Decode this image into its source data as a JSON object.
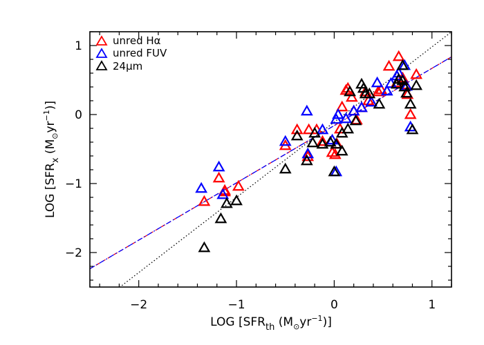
{
  "chart_data": {
    "type": "scatter",
    "xlabel": {
      "pre": "LOG [SFR",
      "sub": "th",
      "post": " (M",
      "sun": "⊙",
      "unit": "yr",
      "sup": "−1",
      "close": ")]"
    },
    "ylabel": {
      "pre": "LOG [SFR",
      "sub": "x",
      "post": " (M",
      "sun": "⊙",
      "unit": "yr",
      "sup": "−1",
      "close": ")]"
    },
    "xlim": [
      -2.5,
      1.2
    ],
    "ylim": [
      -2.5,
      1.2
    ],
    "xticks": [
      -2,
      -1,
      0,
      1
    ],
    "yticks": [
      -2,
      -1,
      0,
      1
    ],
    "xminor_step": 0.2,
    "yminor_step": 0.2,
    "grid": false,
    "legend_position": "top-left",
    "series": [
      {
        "name": "unred Hα",
        "marker": "triangle-open",
        "color": "#ff0000",
        "points": [
          [
            -1.33,
            -1.26
          ],
          [
            -1.18,
            -0.92
          ],
          [
            -1.12,
            -1.1
          ],
          [
            -1.12,
            -1.12
          ],
          [
            -0.98,
            -1.04
          ],
          [
            -0.5,
            -0.45
          ],
          [
            -0.38,
            -0.22
          ],
          [
            -0.26,
            -0.22
          ],
          [
            -0.27,
            -0.61
          ],
          [
            -0.18,
            -0.22
          ],
          [
            -0.12,
            -0.39
          ],
          [
            -0.02,
            -0.55
          ],
          [
            0.01,
            -0.58
          ],
          [
            0.03,
            -0.43
          ],
          [
            0.06,
            -0.21
          ],
          [
            0.08,
            0.11
          ],
          [
            0.12,
            0.35
          ],
          [
            0.14,
            0.38
          ],
          [
            0.18,
            0.25
          ],
          [
            0.2,
            0.05
          ],
          [
            0.23,
            -0.08
          ],
          [
            0.28,
            0.1
          ],
          [
            0.32,
            0.33
          ],
          [
            0.35,
            0.2
          ],
          [
            0.45,
            0.33
          ],
          [
            0.48,
            0.36
          ],
          [
            0.56,
            0.7
          ],
          [
            0.64,
            0.46
          ],
          [
            0.66,
            0.84
          ],
          [
            0.7,
            0.53
          ],
          [
            0.73,
            0.43
          ],
          [
            0.75,
            0.29
          ],
          [
            0.78,
            0.0
          ],
          [
            0.84,
            0.58
          ]
        ]
      },
      {
        "name": "unred FUV",
        "marker": "triangle-open",
        "color": "#0000ff",
        "points": [
          [
            -1.36,
            -1.07
          ],
          [
            -1.18,
            -0.76
          ],
          [
            -1.14,
            -1.16
          ],
          [
            -0.5,
            -0.39
          ],
          [
            -0.28,
            0.05
          ],
          [
            -0.27,
            -0.57
          ],
          [
            -0.12,
            -0.22
          ],
          [
            -0.02,
            -0.37
          ],
          [
            0.02,
            -0.07
          ],
          [
            0.02,
            -0.83
          ],
          [
            0.04,
            0.0
          ],
          [
            0.12,
            -0.06
          ],
          [
            0.2,
            0.05
          ],
          [
            0.28,
            0.1
          ],
          [
            0.38,
            0.18
          ],
          [
            0.44,
            0.46
          ],
          [
            0.54,
            0.34
          ],
          [
            0.58,
            0.45
          ],
          [
            0.64,
            0.56
          ],
          [
            0.66,
            0.6
          ],
          [
            0.72,
            0.71
          ],
          [
            0.74,
            0.41
          ],
          [
            0.78,
            -0.18
          ]
        ]
      },
      {
        "name": "24μm",
        "marker": "triangle-open",
        "color": "#000000",
        "points": [
          [
            -1.33,
            -1.93
          ],
          [
            -1.16,
            -1.51
          ],
          [
            -1.1,
            -1.29
          ],
          [
            -1.0,
            -1.25
          ],
          [
            -0.5,
            -0.79
          ],
          [
            -0.38,
            -0.31
          ],
          [
            -0.28,
            -0.67
          ],
          [
            -0.22,
            -0.41
          ],
          [
            -0.2,
            -0.27
          ],
          [
            -0.12,
            -0.43
          ],
          [
            -0.04,
            -0.4
          ],
          [
            0.0,
            -0.83
          ],
          [
            0.02,
            -0.43
          ],
          [
            0.08,
            -0.27
          ],
          [
            0.08,
            -0.53
          ],
          [
            0.14,
            -0.21
          ],
          [
            0.16,
            0.33
          ],
          [
            0.22,
            -0.09
          ],
          [
            0.28,
            0.44
          ],
          [
            0.3,
            0.38
          ],
          [
            0.32,
            0.3
          ],
          [
            0.36,
            0.3
          ],
          [
            0.46,
            0.15
          ],
          [
            0.64,
            0.44
          ],
          [
            0.66,
            0.51
          ],
          [
            0.7,
            0.71
          ],
          [
            0.7,
            0.49
          ],
          [
            0.72,
            0.4
          ],
          [
            0.74,
            0.31
          ],
          [
            0.78,
            0.15
          ],
          [
            0.8,
            -0.22
          ],
          [
            0.84,
            0.42
          ]
        ]
      }
    ],
    "fit_lines": [
      {
        "name": "fit unred Hα",
        "style": "dashed",
        "color": "#ff0000",
        "slope": 0.83,
        "intercept": -0.16
      },
      {
        "name": "fit unred FUV",
        "style": "dashdot",
        "color": "#0000ff",
        "slope": 0.83,
        "intercept": -0.16
      },
      {
        "name": "fit 24μm",
        "style": "dotted",
        "color": "#000000",
        "slope": 1.09,
        "intercept": -0.11
      }
    ]
  }
}
